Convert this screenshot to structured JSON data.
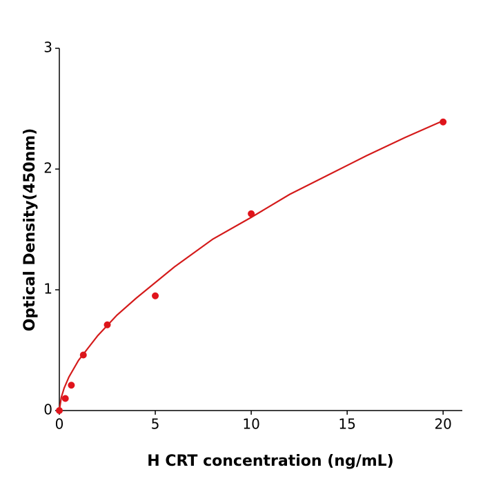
{
  "chart_data": {
    "type": "scatter",
    "x_label": "H  CRT concentration (ng/mL)",
    "y_label": "Optical Density(450nm)",
    "xlim": [
      0,
      21
    ],
    "ylim": [
      0,
      3
    ],
    "xticks": [
      0,
      5,
      10,
      15,
      20
    ],
    "yticks": [
      0,
      1,
      2,
      3
    ],
    "grid": false,
    "series": [
      {
        "mode": "markers",
        "color": "#e0141c",
        "x": [
          0,
          0.3125,
          0.625,
          1.25,
          2.5,
          5,
          10,
          20
        ],
        "values": [
          0.0,
          0.1,
          0.21,
          0.46,
          0.71,
          0.95,
          1.63,
          2.39
        ]
      },
      {
        "mode": "line",
        "color": "#d41a1a",
        "x": [
          0,
          0.1,
          0.25,
          0.5,
          1,
          2,
          3,
          4,
          6,
          8,
          10,
          12,
          14,
          16,
          18,
          20
        ],
        "values": [
          0,
          0.108,
          0.186,
          0.278,
          0.416,
          0.62,
          0.79,
          0.93,
          1.19,
          1.42,
          1.6,
          1.79,
          1.95,
          2.11,
          2.26,
          2.4
        ]
      }
    ]
  }
}
